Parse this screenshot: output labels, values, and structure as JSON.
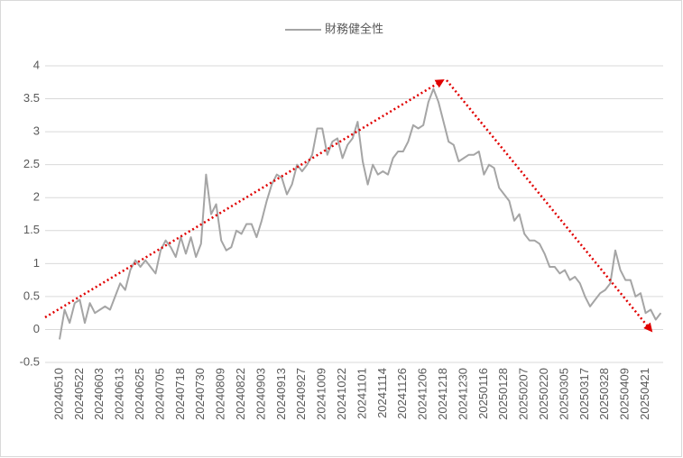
{
  "chart_data": {
    "type": "line",
    "categories": [
      "20240510",
      null,
      null,
      null,
      "20240522",
      null,
      null,
      null,
      "20240603",
      null,
      null,
      null,
      "20240613",
      null,
      null,
      null,
      "20240625",
      null,
      null,
      null,
      "20240705",
      null,
      null,
      null,
      "20240718",
      null,
      null,
      null,
      "20240730",
      null,
      null,
      null,
      "20240809",
      null,
      null,
      null,
      "20240822",
      null,
      null,
      null,
      "20240903",
      null,
      null,
      null,
      "20240913",
      null,
      null,
      null,
      "20240927",
      null,
      null,
      null,
      "20241009",
      null,
      null,
      null,
      "20241022",
      null,
      null,
      null,
      "20241101",
      null,
      null,
      null,
      "20241114",
      null,
      null,
      null,
      "20241126",
      null,
      null,
      null,
      "20241206",
      null,
      null,
      null,
      "20241218",
      null,
      null,
      null,
      "20241230",
      null,
      null,
      null,
      "20250116",
      null,
      null,
      null,
      "20250128",
      null,
      null,
      null,
      "20250207",
      null,
      null,
      null,
      "20250220",
      null,
      null,
      null,
      "20250305",
      null,
      null,
      null,
      "20250317",
      null,
      null,
      null,
      "20250328",
      null,
      null,
      null,
      "20250409",
      null,
      null,
      null,
      "20250421",
      null,
      null,
      null
    ],
    "series": [
      {
        "name": "財務健全性",
        "color": "#a5a5a5",
        "values": [
          -0.15,
          0.3,
          0.1,
          0.4,
          0.45,
          0.1,
          0.4,
          0.25,
          0.3,
          0.35,
          0.3,
          0.5,
          0.7,
          0.6,
          0.9,
          1.05,
          0.95,
          1.05,
          0.95,
          0.85,
          1.2,
          1.35,
          1.25,
          1.1,
          1.4,
          1.15,
          1.4,
          1.1,
          1.3,
          2.35,
          1.75,
          1.9,
          1.35,
          1.2,
          1.25,
          1.5,
          1.45,
          1.6,
          1.6,
          1.4,
          1.65,
          1.95,
          2.2,
          2.35,
          2.3,
          2.05,
          2.2,
          2.5,
          2.4,
          2.5,
          2.65,
          3.05,
          3.05,
          2.65,
          2.85,
          2.9,
          2.6,
          2.8,
          2.9,
          3.15,
          2.55,
          2.2,
          2.5,
          2.35,
          2.4,
          2.35,
          2.6,
          2.7,
          2.7,
          2.85,
          3.1,
          3.05,
          3.1,
          3.45,
          3.65,
          3.45,
          3.15,
          2.85,
          2.8,
          2.55,
          2.6,
          2.65,
          2.65,
          2.7,
          2.35,
          2.5,
          2.45,
          2.15,
          2.05,
          1.95,
          1.65,
          1.75,
          1.45,
          1.35,
          1.35,
          1.3,
          1.15,
          0.95,
          0.95,
          0.85,
          0.9,
          0.75,
          0.8,
          0.7,
          0.5,
          0.35,
          0.45,
          0.55,
          0.6,
          0.7,
          1.2,
          0.9,
          0.75,
          0.75,
          0.5,
          0.55,
          0.25,
          0.3,
          0.15,
          0.25
        ]
      }
    ],
    "ylim": [
      -0.5,
      4
    ],
    "yticks": [
      -0.5,
      0,
      0.5,
      1,
      1.5,
      2,
      2.5,
      3,
      3.5,
      4
    ],
    "grid": true,
    "legend": "top"
  }
}
